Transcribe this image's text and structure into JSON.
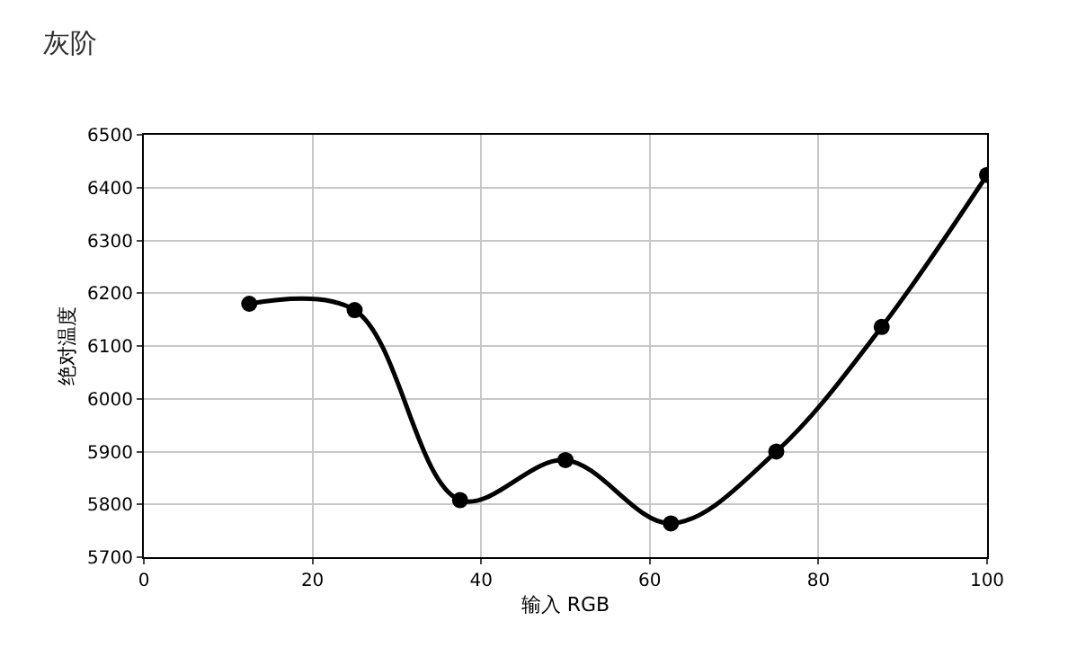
{
  "chart_data": {
    "type": "line",
    "title": "灰阶",
    "xlabel": "输入 RGB",
    "ylabel": "绝对温度",
    "x": [
      12.5,
      25,
      37.5,
      50,
      62.5,
      75,
      87.5,
      100
    ],
    "series": [
      {
        "color": "#000000",
        "values": [
          6180,
          6168,
          5808,
          5884,
          5764,
          5900,
          6136,
          6424
        ]
      }
    ],
    "xlim": [
      0,
      100
    ],
    "xticks": [
      0,
      20,
      40,
      60,
      80,
      100
    ],
    "ylim": [
      5700,
      6500
    ],
    "yticks": [
      5700,
      5800,
      5900,
      6000,
      6100,
      6200,
      6300,
      6400,
      6500
    ],
    "grid": true,
    "marker": "circle",
    "line_style": "solid"
  }
}
